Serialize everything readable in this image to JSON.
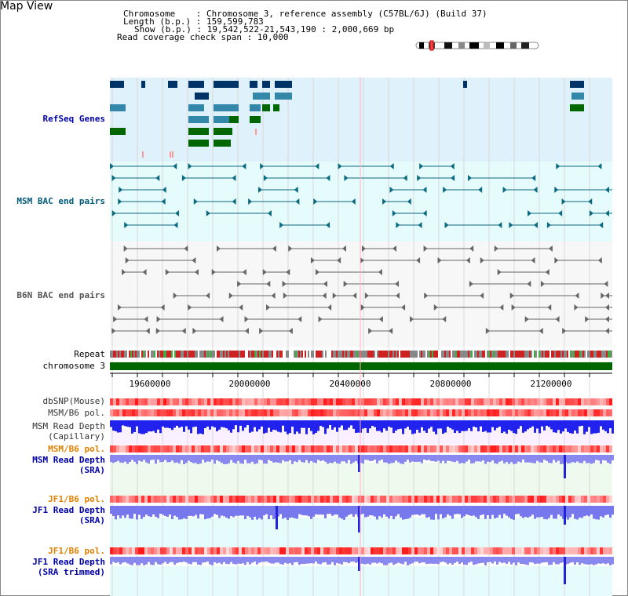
{
  "window": {
    "title": "Map View"
  },
  "info": {
    "chromosome": "Chromosome    : Chromosome 3, reference assembly (C57BL/6J) (Build 37)",
    "length": "Length (b.p.) : 159,599,783",
    "show": "Show (b.p.) : 19,542,522-21,543,190 : 2,000,669 bp",
    "coverage": "Read coverage check span : 10,000"
  },
  "tracks": {
    "refseq": "RefSeq Genes",
    "msm_bac": "MSM BAC end pairs",
    "b6n_bac": "B6N BAC end pairs",
    "repeat": "Repeat",
    "chromosome": "chromosome 3",
    "dbsnp": "dbSNP(Mouse)",
    "msm_b6_pol_1": "MSM/B6 pol.",
    "msm_depth_cap_1": "MSM Read Depth",
    "msm_depth_cap_2": "(Capillary)",
    "msm_b6_pol_2": "MSM/B6 pol.",
    "msm_depth_sra_1": "MSM Read Depth",
    "msm_depth_sra_2": "(SRA)",
    "jf1_b6_pol_1": "JF1/B6 pol.",
    "jf1_depth_sra_1": "JF1 Read Depth",
    "jf1_depth_sra_2": "(SRA)",
    "jf1_b6_pol_2": "JF1/B6 pol.",
    "jf1_depth_trim_1": "JF1 Read Depth",
    "jf1_depth_trim_2": "(SRA trimmed)"
  },
  "axis": {
    "ticks": [
      "19600000",
      "20000000",
      "20400000",
      "20800000",
      "21200000"
    ]
  },
  "colors": {
    "refseq_bg": "#dff1fb",
    "msm_bg": "#e6fbfb",
    "b6n_bg": "#f4f4f4",
    "refseq_label": "#0000aa",
    "msm_label": "#005a7a",
    "b6n_label": "#555555",
    "pol_orange": "#e08000",
    "depth_blue": "#0000aa",
    "chrom_green": "#006600"
  }
}
